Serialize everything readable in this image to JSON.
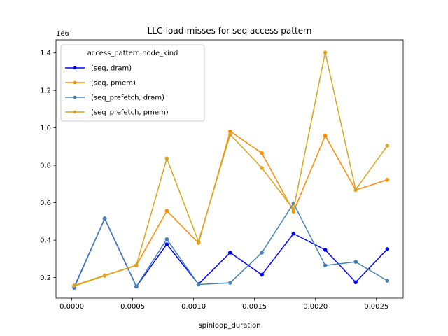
{
  "chart_data": {
    "type": "line",
    "title": "LLC-load-misses for seq access pattern",
    "xlabel": "spinloop_duration",
    "ylabel": "",
    "y_multiplier": "1e6",
    "xlim": [
      -0.00013,
      0.00272
    ],
    "ylim": [
      90000,
      1470000
    ],
    "x_ticks": [
      0.0,
      0.0005,
      0.001,
      0.0015,
      0.002,
      0.0025
    ],
    "x_tick_labels": [
      "0.0000",
      "0.0005",
      "0.0010",
      "0.0015",
      "0.0020",
      "0.0025"
    ],
    "y_ticks": [
      200000,
      400000,
      600000,
      800000,
      1000000,
      1200000,
      1400000
    ],
    "y_tick_labels": [
      "0.2",
      "0.4",
      "0.6",
      "0.8",
      "1.0",
      "1.2",
      "1.4"
    ],
    "grid": false,
    "legend": {
      "title": "access_pattern,node_kind",
      "placement": "upper-left"
    },
    "x": [
      2e-05,
      0.00027,
      0.00053,
      0.00078,
      0.00104,
      0.0013,
      0.00156,
      0.00182,
      0.00208,
      0.00233,
      0.00259
    ],
    "series": [
      {
        "name": "(seq, dram)",
        "color": "#0000ff",
        "values": [
          150000,
          515000,
          152000,
          378000,
          165000,
          333000,
          215000,
          435000,
          348000,
          175000,
          352000
        ]
      },
      {
        "name": "(seq, pmem)",
        "color": "#ff8c00",
        "values": [
          155000,
          210000,
          265000,
          557000,
          385000,
          982000,
          865000,
          553000,
          958000,
          668000,
          723000
        ]
      },
      {
        "name": "(seq_prefetch, dram)",
        "color": "#4682b4",
        "values": [
          145000,
          517000,
          153000,
          405000,
          163000,
          172000,
          333000,
          597000,
          265000,
          284000,
          183000
        ]
      },
      {
        "name": "(seq_prefetch, pmem)",
        "color": "#daa520",
        "values": [
          158000,
          212000,
          266000,
          837000,
          393000,
          965000,
          786000,
          565000,
          1402000,
          670000,
          905000
        ]
      }
    ]
  }
}
